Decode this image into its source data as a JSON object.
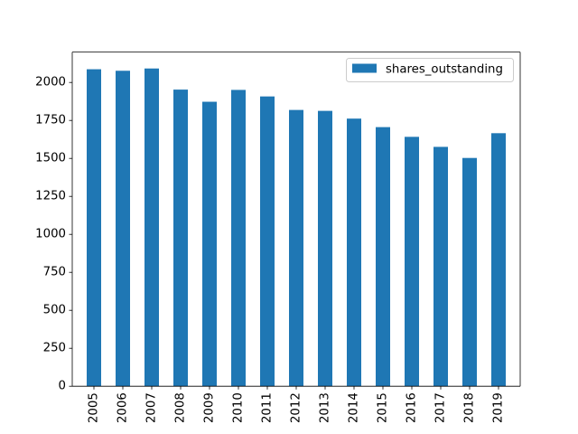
{
  "chart_data": {
    "type": "bar",
    "categories": [
      "2005",
      "2006",
      "2007",
      "2008",
      "2009",
      "2010",
      "2011",
      "2012",
      "2013",
      "2014",
      "2015",
      "2016",
      "2017",
      "2018",
      "2019"
    ],
    "series": [
      {
        "name": "shares_outstanding",
        "color": "#1f77b4",
        "values": [
          2087,
          2077,
          2092,
          1953,
          1873,
          1951,
          1908,
          1819,
          1813,
          1762,
          1706,
          1642,
          1576,
          1503,
          1666
        ]
      }
    ],
    "title": "",
    "xlabel": "",
    "ylabel": "",
    "ylim": [
      0,
      2200
    ],
    "yticks": [
      0,
      250,
      500,
      750,
      1000,
      1250,
      1500,
      1750,
      2000
    ],
    "grid": false,
    "legend": {
      "placement": "top-right"
    },
    "xtick_rotation": "vertical"
  }
}
